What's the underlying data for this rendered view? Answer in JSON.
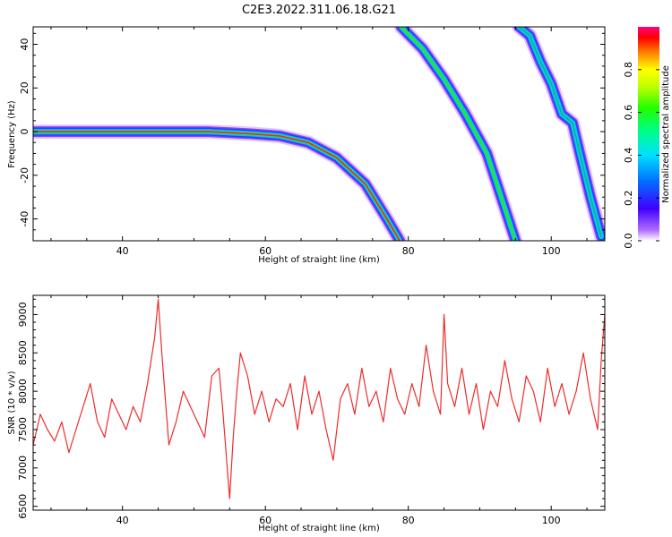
{
  "title": "C2E3.2022.311.06.18.G21",
  "chart_data": [
    {
      "type": "heatmap",
      "name": "spectrogram",
      "xlabel": "Height of straight line (km)",
      "ylabel": "Frequency (Hz)",
      "xlim": [
        27.5,
        107.5
      ],
      "ylim": [
        -50,
        48
      ],
      "xticks": [
        40,
        60,
        80,
        100
      ],
      "yticks": [
        -40,
        -20,
        0,
        20,
        40
      ],
      "colorbar": {
        "label": "Normalized spectral amplitude",
        "range": [
          0.0,
          1.0
        ],
        "ticks": [
          0.0,
          0.2,
          0.4,
          0.6,
          0.8
        ]
      },
      "traces": [
        {
          "points": [
            [
              27.5,
              0
            ],
            [
              40,
              0
            ],
            [
              52,
              0
            ],
            [
              58,
              -1
            ],
            [
              62,
              -2
            ],
            [
              66,
              -5
            ],
            [
              70,
              -12
            ],
            [
              74,
              -24
            ],
            [
              77,
              -40
            ],
            [
              78.8,
              -50
            ]
          ],
          "peak_color": "#ff2020"
        },
        {
          "points": [
            [
              79,
              48
            ],
            [
              82,
              38
            ],
            [
              85,
              24
            ],
            [
              88,
              8
            ],
            [
              91,
              -10
            ],
            [
              93,
              -30
            ],
            [
              95,
              -50
            ]
          ],
          "peak_color": "#30e030"
        },
        {
          "points": [
            [
              95.5,
              48
            ],
            [
              97,
              44
            ],
            [
              98.5,
              32
            ],
            [
              100,
              22
            ],
            [
              101.5,
              8
            ],
            [
              103,
              4
            ],
            [
              104,
              -10
            ],
            [
              105.5,
              -30
            ],
            [
              107,
              -48
            ]
          ],
          "peak_color": "#00a0ff"
        }
      ]
    },
    {
      "type": "line",
      "name": "snr",
      "xlabel": "Height of straight line (km)",
      "ylabel": "SNR (10 * v/v)",
      "xlim": [
        27.5,
        107.5
      ],
      "ylim": [
        6450,
        9250
      ],
      "xticks": [
        40,
        60,
        80,
        100
      ],
      "yticks": [
        6500,
        7000,
        7500,
        8000,
        8500,
        9000
      ],
      "color": "#ee2c2c",
      "series": [
        {
          "x": [
            27.5,
            28.5,
            29.5,
            30.5,
            31.5,
            32.5,
            33.5,
            34.5,
            35.5,
            36.5,
            37.5,
            38.5,
            39.5,
            40.5,
            41.5,
            42.5,
            43.5,
            44.5,
            45.0,
            45.5,
            46.0,
            46.5,
            47.5,
            48.5,
            49.5,
            50.5,
            51.5,
            52.5,
            53.5,
            54.0,
            54.5,
            55.0,
            55.5,
            56.0,
            56.5,
            57.5,
            58.5,
            59.5,
            60.5,
            61.5,
            62.5,
            63.5,
            64.5,
            65.5,
            66.5,
            67.5,
            68.5,
            69.5,
            70.5,
            71.5,
            72.5,
            73.5,
            74.5,
            75.5,
            76.5,
            77.5,
            78.5,
            79.5,
            80.5,
            81.5,
            82.5,
            83.5,
            84.5,
            85.0,
            85.5,
            86.5,
            87.5,
            88.5,
            89.5,
            90.5,
            91.5,
            92.5,
            93.5,
            94.5,
            95.5,
            96.5,
            97.5,
            98.5,
            99.5,
            100.5,
            101.5,
            102.5,
            103.5,
            104.5,
            105.5,
            106.5,
            107.0,
            107.5
          ],
          "y": [
            7300,
            7700,
            7500,
            7350,
            7600,
            7200,
            7500,
            7800,
            8100,
            7600,
            7400,
            7900,
            7700,
            7500,
            7800,
            7600,
            8100,
            8700,
            9200,
            8500,
            7900,
            7300,
            7600,
            8000,
            7800,
            7600,
            7400,
            8200,
            8300,
            7800,
            7200,
            6600,
            7400,
            8000,
            8500,
            8200,
            7700,
            8000,
            7600,
            7900,
            7800,
            8100,
            7500,
            8200,
            7700,
            8000,
            7500,
            7100,
            7900,
            8100,
            7700,
            8300,
            7800,
            8000,
            7600,
            8300,
            7900,
            7700,
            8100,
            7800,
            8600,
            8000,
            7700,
            9000,
            8100,
            7800,
            8300,
            7700,
            8100,
            7500,
            8000,
            7800,
            8400,
            7900,
            7600,
            8200,
            8000,
            7600,
            8300,
            7800,
            8100,
            7700,
            8000,
            8500,
            7900,
            7500,
            8400,
            9000
          ]
        }
      ]
    }
  ]
}
